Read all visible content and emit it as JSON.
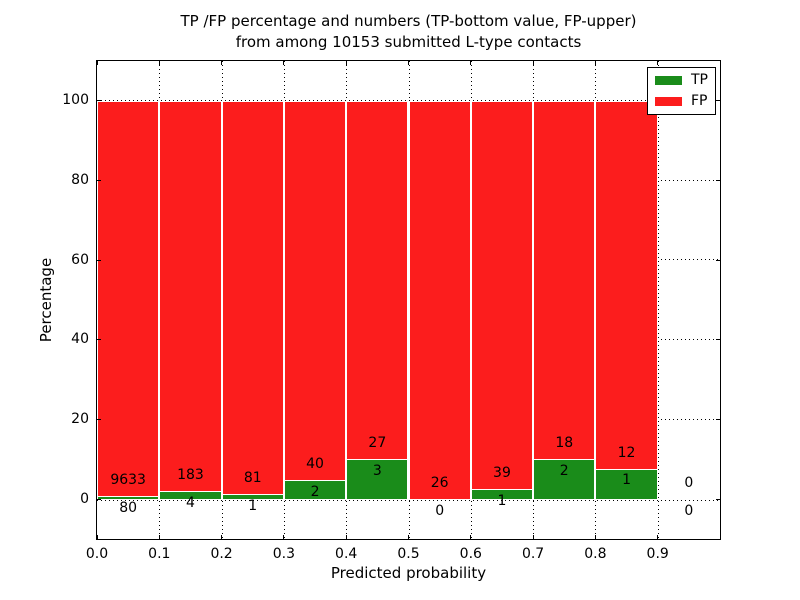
{
  "chart_data": {
    "type": "bar",
    "stacked": true,
    "title_lines": [
      "TP /FP percentage and numbers (TP-bottom value, FP-upper)",
      "from among 10153 submitted L-type contacts"
    ],
    "xlabel": "Predicted probability",
    "ylabel": "Percentage",
    "xlim": [
      0,
      1.0
    ],
    "ylim": [
      -10,
      110
    ],
    "xticks": [
      0.0,
      0.1,
      0.2,
      0.3,
      0.4,
      0.5,
      0.6,
      0.7,
      0.8,
      0.9
    ],
    "xtick_labels": [
      "0.0",
      "0.1",
      "0.2",
      "0.3",
      "0.4",
      "0.5",
      "0.6",
      "0.7",
      "0.8",
      "0.9"
    ],
    "yticks": [
      0,
      20,
      40,
      60,
      80,
      100
    ],
    "ytick_labels": [
      "0",
      "20",
      "40",
      "60",
      "80",
      "100"
    ],
    "grid": "dotted",
    "bin_edges": [
      0.0,
      0.1,
      0.2,
      0.3,
      0.4,
      0.5,
      0.6,
      0.7,
      0.8,
      0.9,
      1.0
    ],
    "series": [
      {
        "name": "TP",
        "color": "#1a8c1a",
        "counts": [
          80,
          4,
          1,
          2,
          3,
          0,
          1,
          2,
          1,
          0
        ]
      },
      {
        "name": "FP",
        "color": "#fc1d1d",
        "counts": [
          9633,
          183,
          81,
          40,
          27,
          26,
          39,
          18,
          12,
          0
        ]
      }
    ],
    "bar_percentages_note": "each non-empty bin stacks to 100%; green height = TP/(TP+FP)*100",
    "legend": {
      "location": "upper right",
      "labels": [
        "TP",
        "FP"
      ]
    }
  }
}
